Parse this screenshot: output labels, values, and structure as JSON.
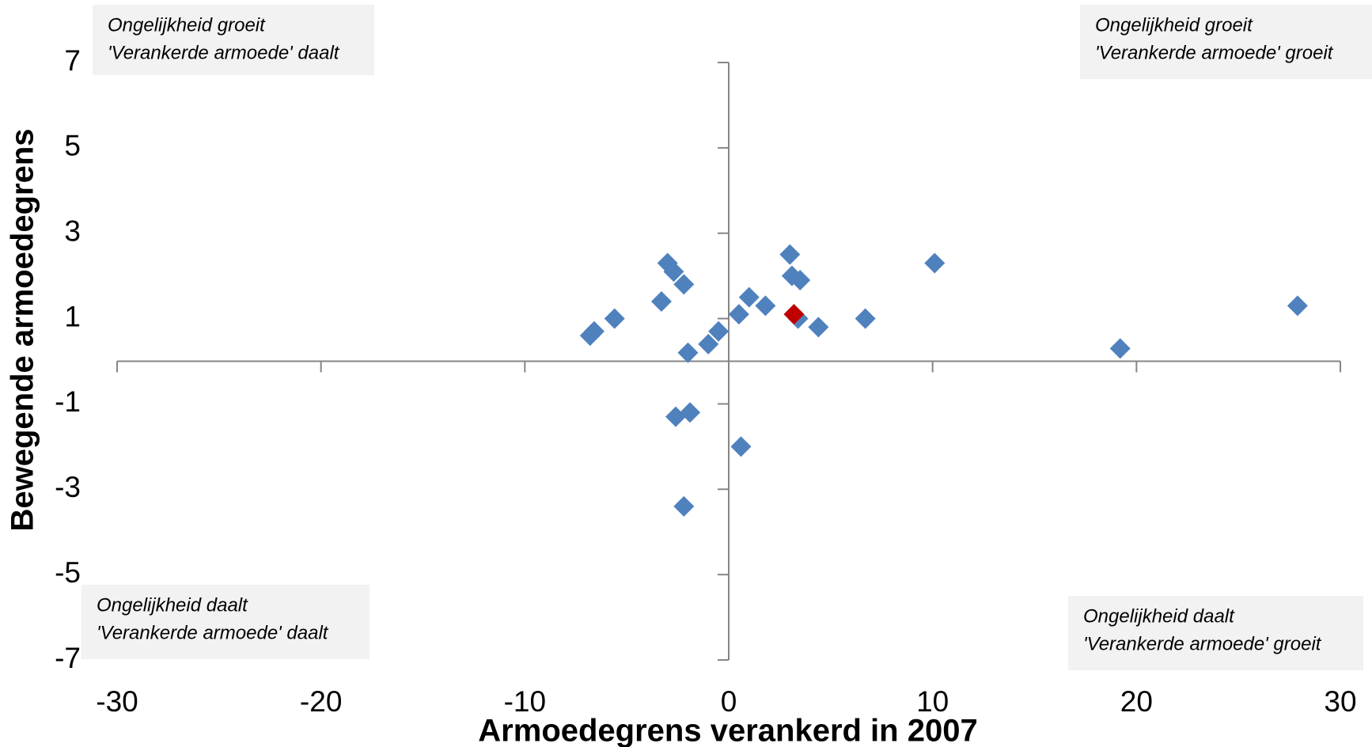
{
  "chart_data": {
    "type": "scatter",
    "x_label": "Armoedegrens verankerd in 2007",
    "y_label": "Bewegende armoedegrens",
    "xlim": [
      -30,
      30
    ],
    "xticks": [
      -30,
      -20,
      -10,
      0,
      10,
      20,
      30
    ],
    "ylim": [
      -7,
      7
    ],
    "yticks": [
      -7,
      -5,
      -3,
      -1,
      1,
      3,
      5,
      7
    ],
    "series": [
      {
        "color": "#4f81bd",
        "x": [
          -6.8,
          -6.6,
          -5.6,
          -3.3,
          -3.0,
          -2.7,
          -2.2,
          -2.0,
          -2.6,
          -1.9,
          -2.2,
          -1.0,
          -0.5,
          0.5,
          0.6,
          1.0,
          1.8,
          3.0,
          3.1,
          3.5,
          3.4,
          4.4,
          6.7,
          10.1,
          19.2,
          27.9
        ],
        "values": [
          0.6,
          0.7,
          1.0,
          1.4,
          2.3,
          2.1,
          1.8,
          0.2,
          -1.3,
          -1.2,
          -3.4,
          0.4,
          0.7,
          1.1,
          -2.0,
          1.5,
          1.3,
          2.5,
          2.0,
          1.9,
          1.0,
          0.8,
          1.0,
          2.3,
          0.3,
          1.3
        ]
      },
      {
        "color": "#c00000",
        "x": [
          3.2
        ],
        "values": [
          1.1
        ]
      }
    ],
    "annotations": [
      [
        "Ongelijkheid groeit",
        "'Verankerde armoede' daalt"
      ],
      [
        "Ongelijkheid groeit",
        "'Verankerde armoede' groeit"
      ],
      [
        "Ongelijkheid daalt",
        "'Verankerde armoede' daalt"
      ],
      [
        "Ongelijkheid daalt",
        "'Verankerde armoede' groeit"
      ]
    ]
  }
}
